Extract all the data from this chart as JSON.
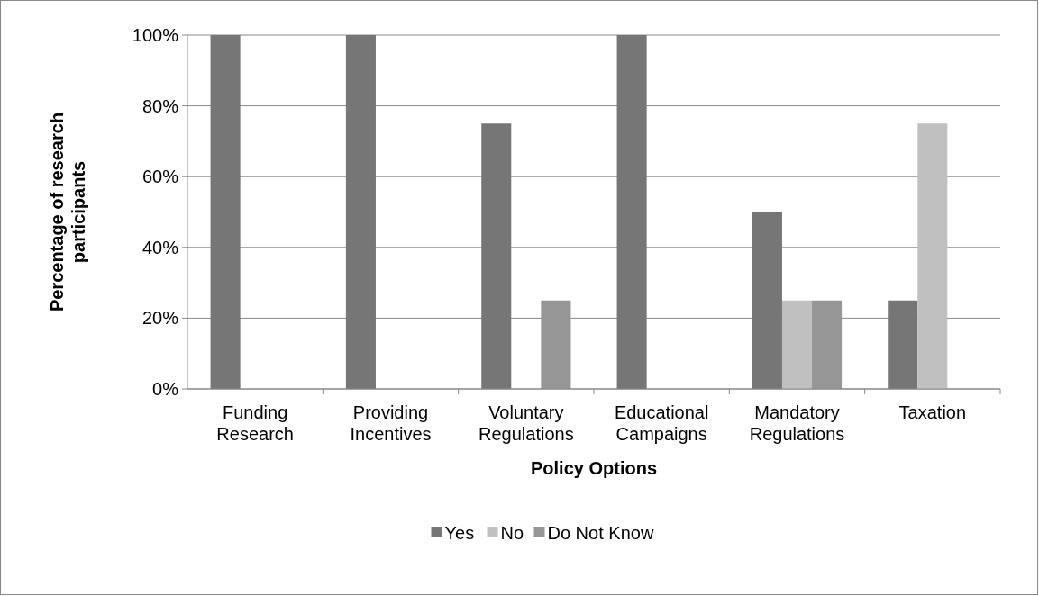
{
  "chart_data": {
    "type": "bar",
    "xlabel": "Policy Options",
    "ylabel": "Percentage of research participants",
    "categories": [
      "Funding Research",
      "Providing Incentives",
      "Voluntary Regulations",
      "Educational Campaigns",
      "Mandatory Regulations",
      "Taxation"
    ],
    "series": [
      {
        "name": "Yes",
        "color": "#767676",
        "values": [
          100,
          100,
          75,
          100,
          50,
          25
        ]
      },
      {
        "name": "No",
        "color": "#c0c0c0",
        "values": [
          0,
          0,
          0,
          0,
          25,
          75
        ]
      },
      {
        "name": "Do Not Know",
        "color": "#969696",
        "values": [
          0,
          0,
          25,
          0,
          25,
          0
        ]
      }
    ],
    "ylim": [
      0,
      100
    ],
    "yticks": [
      {
        "value": 0,
        "label": "0%"
      },
      {
        "value": 20,
        "label": "20%"
      },
      {
        "value": 40,
        "label": "40%"
      },
      {
        "value": 60,
        "label": "60%"
      },
      {
        "value": 80,
        "label": "80%"
      },
      {
        "value": 100,
        "label": "100%"
      }
    ],
    "grid": "y",
    "legend": "bottom"
  }
}
